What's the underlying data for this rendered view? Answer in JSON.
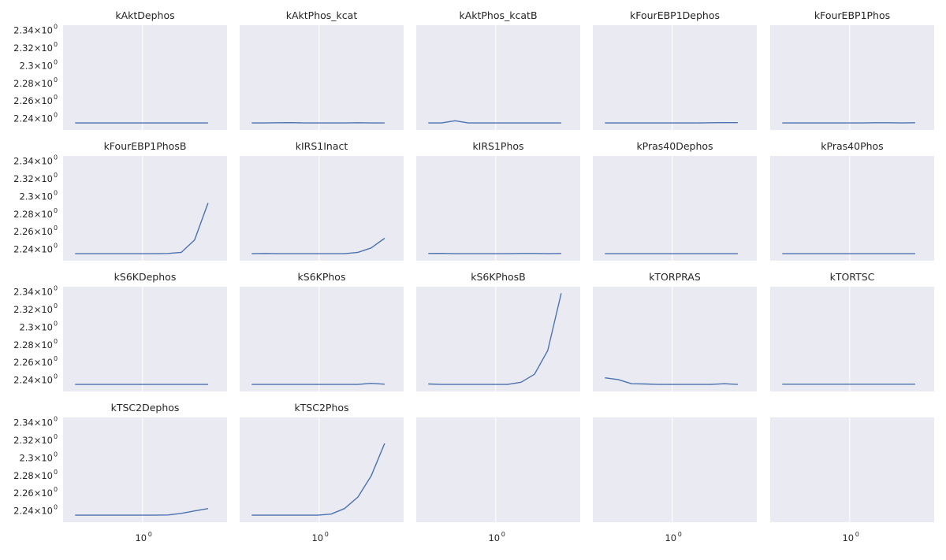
{
  "chart_data": {
    "type": "line",
    "layout": {
      "rows": 4,
      "cols": 5,
      "sharex": true,
      "sharey": true
    },
    "xscale": "log",
    "xticks": [
      {
        "base": "10",
        "exp": "0"
      }
    ],
    "yticks": [
      {
        "mantissa": "2.24",
        "times": "×10",
        "exp": "0",
        "value": 2.24
      },
      {
        "mantissa": "2.26",
        "times": "×10",
        "exp": "0",
        "value": 2.26
      },
      {
        "mantissa": "2.28",
        "times": "×10",
        "exp": "0",
        "value": 2.28
      },
      {
        "mantissa": "2.3",
        "times": "×10",
        "exp": "0",
        "value": 2.3
      },
      {
        "mantissa": "2.32",
        "times": "×10",
        "exp": "0",
        "value": 2.32
      },
      {
        "mantissa": "2.34",
        "times": "×10",
        "exp": "0",
        "value": 2.34
      }
    ],
    "xlim": [
      0.3,
      3.6
    ],
    "ylim": [
      2.227,
      2.346
    ],
    "grid": true,
    "line_color": "#4c72b0",
    "background_color": "#eaeaf2",
    "x": [
      0.36,
      0.44,
      0.54,
      0.66,
      0.8,
      0.98,
      1.2,
      1.47,
      1.8,
      2.2,
      2.7
    ],
    "panels": [
      {
        "title": "kAktDephos",
        "values": [
          2.235,
          2.235,
          2.235,
          2.235,
          2.235,
          2.235,
          2.235,
          2.235,
          2.235,
          2.235,
          2.235
        ]
      },
      {
        "title": "kAktPhos_kcat",
        "values": [
          2.235,
          2.235,
          2.2352,
          2.2353,
          2.235,
          2.235,
          2.235,
          2.235,
          2.2352,
          2.235,
          2.235
        ]
      },
      {
        "title": "kAktPhos_kcatB",
        "values": [
          2.235,
          2.235,
          2.2375,
          2.235,
          2.235,
          2.235,
          2.235,
          2.235,
          2.235,
          2.235,
          2.235
        ]
      },
      {
        "title": "kFourEBP1Dephos",
        "values": [
          2.235,
          2.235,
          2.235,
          2.235,
          2.235,
          2.235,
          2.235,
          2.235,
          2.2352,
          2.2353,
          2.2353
        ]
      },
      {
        "title": "kFourEBP1Phos",
        "values": [
          2.235,
          2.235,
          2.235,
          2.235,
          2.235,
          2.235,
          2.235,
          2.2352,
          2.2352,
          2.235,
          2.2352
        ]
      },
      {
        "title": "kFourEBP1PhosB",
        "values": [
          2.235,
          2.235,
          2.235,
          2.235,
          2.235,
          2.235,
          2.235,
          2.2352,
          2.2365,
          2.2505,
          2.2925
        ]
      },
      {
        "title": "kIRS1Inact",
        "values": [
          2.235,
          2.2352,
          2.235,
          2.235,
          2.235,
          2.235,
          2.235,
          2.235,
          2.2365,
          2.2415,
          2.2525
        ]
      },
      {
        "title": "kIRS1Phos",
        "values": [
          2.2352,
          2.2353,
          2.235,
          2.235,
          2.235,
          2.235,
          2.235,
          2.2352,
          2.2352,
          2.235,
          2.2352
        ]
      },
      {
        "title": "kPras40Dephos",
        "values": [
          2.235,
          2.235,
          2.235,
          2.235,
          2.235,
          2.235,
          2.235,
          2.235,
          2.235,
          2.235,
          2.235
        ]
      },
      {
        "title": "kPras40Phos",
        "values": [
          2.235,
          2.235,
          2.235,
          2.235,
          2.235,
          2.235,
          2.235,
          2.235,
          2.235,
          2.235,
          2.235
        ]
      },
      {
        "title": "kS6KDephos",
        "values": [
          2.235,
          2.235,
          2.235,
          2.235,
          2.235,
          2.235,
          2.235,
          2.235,
          2.235,
          2.235,
          2.235
        ]
      },
      {
        "title": "kS6KPhos",
        "values": [
          2.235,
          2.235,
          2.235,
          2.235,
          2.235,
          2.235,
          2.235,
          2.235,
          2.235,
          2.2362,
          2.2352
        ]
      },
      {
        "title": "kS6KPhosB",
        "values": [
          2.2355,
          2.235,
          2.235,
          2.235,
          2.235,
          2.235,
          2.235,
          2.2375,
          2.2465,
          2.2735,
          2.3385
        ]
      },
      {
        "title": "kTORPRAS",
        "values": [
          2.2425,
          2.2405,
          2.2358,
          2.2355,
          2.235,
          2.235,
          2.235,
          2.235,
          2.235,
          2.2358,
          2.235
        ]
      },
      {
        "title": "kTORTSC",
        "values": [
          2.2352,
          2.2352,
          2.2352,
          2.2352,
          2.2352,
          2.2352,
          2.2352,
          2.2352,
          2.2352,
          2.2352,
          2.2352
        ]
      },
      {
        "title": "kTSC2Dephos",
        "values": [
          2.235,
          2.235,
          2.235,
          2.235,
          2.235,
          2.235,
          2.235,
          2.2352,
          2.237,
          2.2398,
          2.2425
        ]
      },
      {
        "title": "kTSC2Phos",
        "values": [
          2.235,
          2.235,
          2.235,
          2.235,
          2.235,
          2.235,
          2.2362,
          2.2425,
          2.2555,
          2.2795,
          2.3165
        ]
      },
      {
        "title": "",
        "values": []
      },
      {
        "title": "",
        "values": []
      },
      {
        "title": "",
        "values": []
      }
    ]
  }
}
